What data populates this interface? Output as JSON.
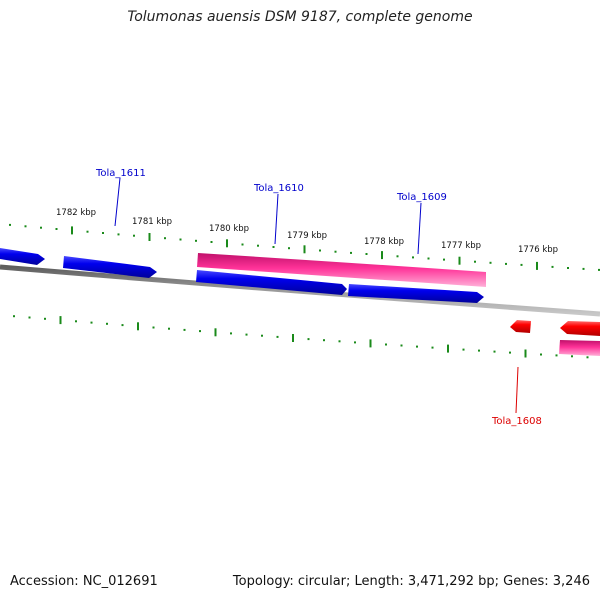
{
  "title": "Tolumonas auensis DSM 9187, complete genome",
  "footer": {
    "accession": "Accession: NC_012691",
    "summary": "Topology: circular; Length: 3,471,292 bp; Genes: 3,246"
  },
  "tick_labels": [
    "1782 kbp",
    "1781 kbp",
    "1780 kbp",
    "1779 kbp",
    "1778 kbp",
    "1777 kbp",
    "1776 kbp"
  ],
  "gene_labels": [
    {
      "name": "Tola_1611",
      "color": "#0000cc"
    },
    {
      "name": "Tola_1610",
      "color": "#0000cc"
    },
    {
      "name": "Tola_1609",
      "color": "#0000cc"
    },
    {
      "name": "Tola_1608",
      "color": "#dd0000"
    }
  ],
  "colors": {
    "forward_gene": "#0000ee",
    "reverse_gene": "#ff0000",
    "rna_gene": "#ff3399",
    "backbone": "#888888",
    "ticks": "#1a8a1a"
  }
}
